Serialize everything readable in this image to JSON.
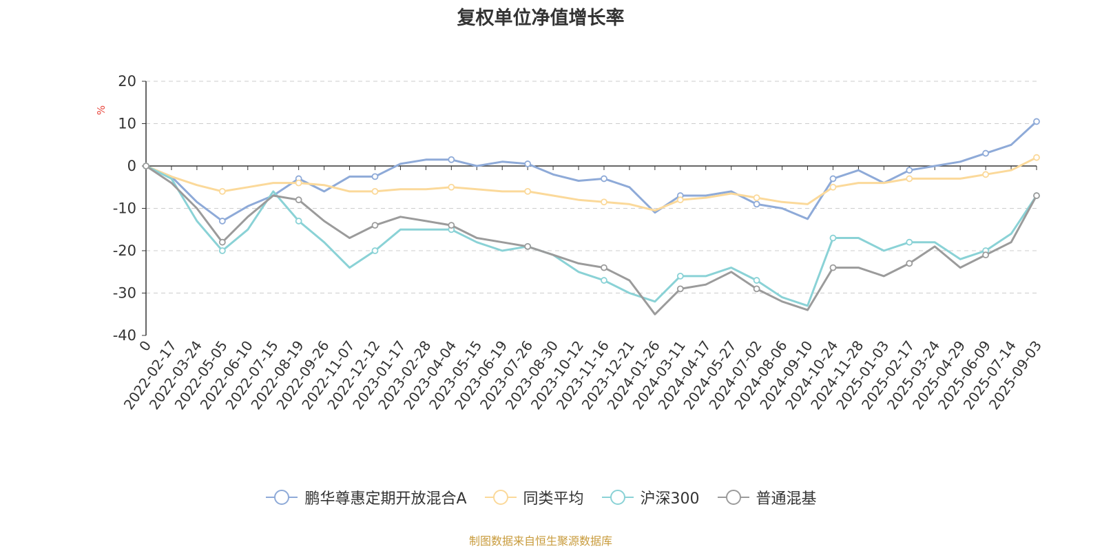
{
  "title": "复权单位净值增长率",
  "source_note": "制图数据来自恒生聚源数据库",
  "colors": {
    "series_1": "#8eaad8",
    "series_2": "#fbd99a",
    "series_3": "#8ad2d6",
    "series_4": "#9b9b9b",
    "axis": "#333333",
    "grid": "#cccccc",
    "ylabel": "#e8453c",
    "source": "#c89b3c"
  },
  "chart_data": {
    "type": "line",
    "title": "复权单位净值增长率",
    "ylabel": "%",
    "xlabel": "",
    "ylim": [
      -40,
      20
    ],
    "yticks": [
      20,
      10,
      0,
      -10,
      -20,
      -30,
      -40
    ],
    "grid": true,
    "legend_position": "bottom",
    "x_tick_labels": [
      "0",
      "2022-02-17",
      "2022-03-24",
      "2022-05-05",
      "2022-06-10",
      "2022-07-15",
      "2022-08-19",
      "2022-09-26",
      "2022-11-07",
      "2022-12-12",
      "2023-01-17",
      "2023-02-28",
      "2023-04-04",
      "2023-05-15",
      "2023-06-19",
      "2023-07-26",
      "2023-08-30",
      "2023-10-12",
      "2023-11-16",
      "2023-12-21",
      "2024-01-26",
      "2024-03-11",
      "2024-04-17",
      "2024-05-27",
      "2024-07-02",
      "2024-08-06",
      "2024-09-10",
      "2024-10-24",
      "2024-11-28",
      "2025-01-03",
      "2025-02-17",
      "2025-03-24",
      "2025-04-29",
      "2025-06-09",
      "2025-07-14",
      "2025-09-03"
    ],
    "series": [
      {
        "name": "鹏华尊惠定期开放混合A",
        "color": "#8eaad8",
        "values": [
          0,
          -2.5,
          -8.5,
          -13,
          -9.5,
          -7,
          -3,
          -6,
          -2.5,
          -2.5,
          0.5,
          1.5,
          1.5,
          0,
          1,
          0.5,
          -2,
          -3.5,
          -3,
          -5,
          -11,
          -7,
          -7,
          -6,
          -9,
          -10,
          -12.5,
          -3,
          -1,
          -4,
          -1,
          0,
          1,
          3,
          5,
          10.5
        ]
      },
      {
        "name": "同类平均",
        "color": "#fbd99a",
        "values": [
          0,
          -2.5,
          -4.5,
          -6,
          -5,
          -4,
          -4,
          -4.5,
          -6,
          -6,
          -5.5,
          -5.5,
          -5,
          -5.5,
          -6,
          -6,
          -7,
          -8,
          -8.5,
          -9,
          -10.5,
          -8,
          -7.5,
          -6.5,
          -7.5,
          -8.5,
          -9,
          -5,
          -4,
          -4,
          -3,
          -3,
          -3,
          -2,
          -1,
          2
        ]
      },
      {
        "name": "沪深300",
        "color": "#8ad2d6",
        "values": [
          0,
          -3,
          -13,
          -20,
          -15,
          -6,
          -13,
          -18,
          -24,
          -20,
          -15,
          -15,
          -15,
          -18,
          -20,
          -19,
          -21,
          -25,
          -27,
          -30,
          -32,
          -26,
          -26,
          -24,
          -27,
          -31,
          -33,
          -17,
          -17,
          -20,
          -18,
          -18,
          -22,
          -20,
          -16,
          -7
        ]
      },
      {
        "name": "普通混基",
        "color": "#9b9b9b",
        "values": [
          0,
          -4,
          -10,
          -18,
          -12,
          -7,
          -8,
          -13,
          -17,
          -14,
          -12,
          -13,
          -14,
          -17,
          -18,
          -19,
          -21,
          -23,
          -24,
          -27,
          -35,
          -29,
          -28,
          -25,
          -29,
          -32,
          -34,
          -24,
          -24,
          -26,
          -23,
          -19,
          -24,
          -21,
          -18,
          -7
        ]
      }
    ]
  }
}
